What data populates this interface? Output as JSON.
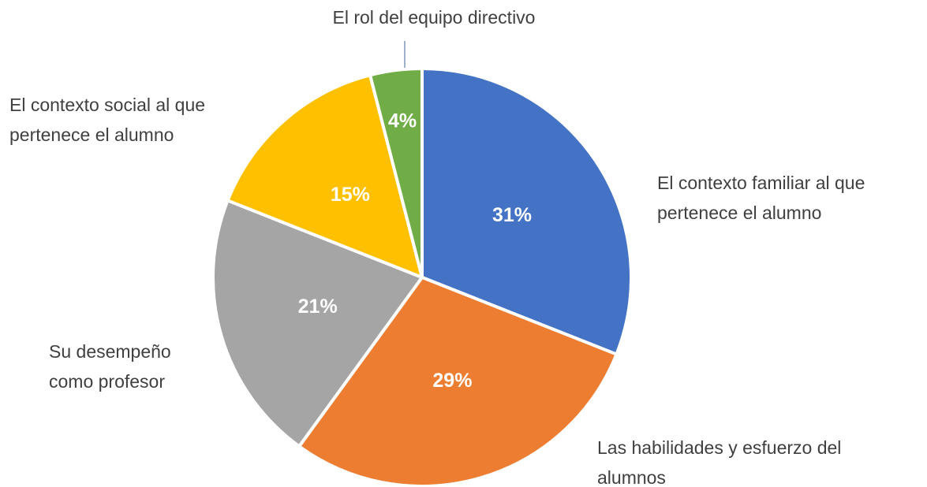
{
  "chart_data": {
    "type": "pie",
    "categories": [
      "El contexto familiar al que pertenece el alumno",
      "Las habilidades y esfuerzo del alumnos",
      "Su desempeño como profesor",
      "El contexto social al que pertenece el alumno",
      "El rol del equipo directivo"
    ],
    "values": [
      31,
      29,
      21,
      15,
      4
    ],
    "value_labels": [
      "31%",
      "29%",
      "21%",
      "15%",
      "4%"
    ],
    "colors": [
      "#4472c4",
      "#ed7d31",
      "#a5a5a5",
      "#ffc000",
      "#70ad47"
    ]
  }
}
